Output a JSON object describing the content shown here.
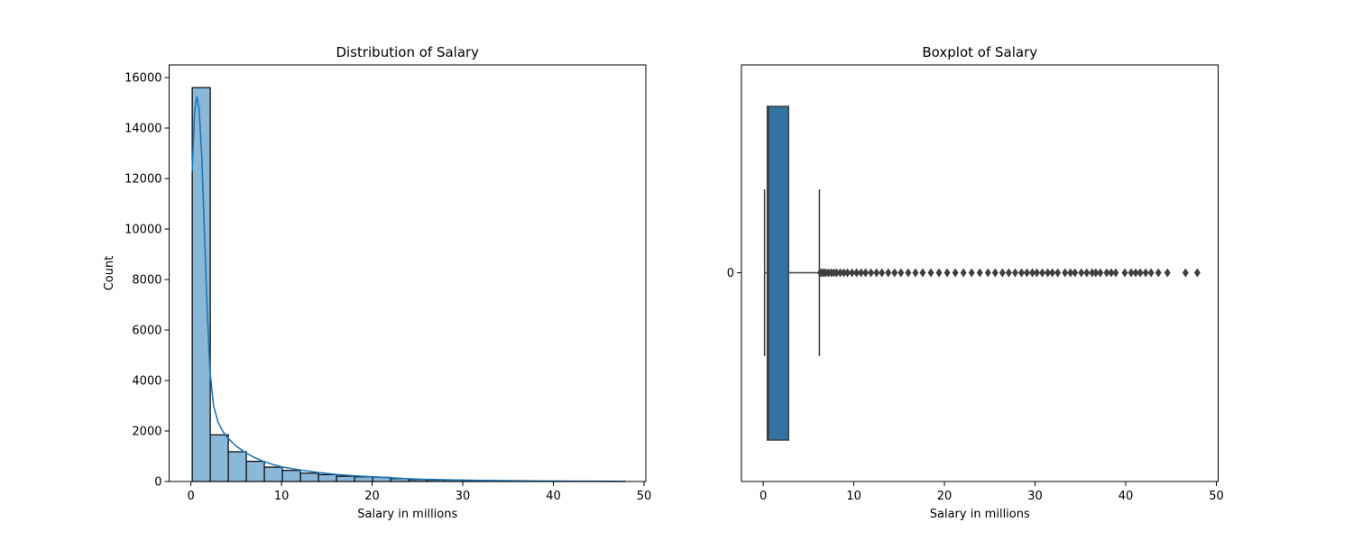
{
  "chart_data": [
    {
      "type": "bar",
      "subtype": "histogram-with-kde",
      "title": "Distribution of Salary",
      "xlabel": "Salary in millions",
      "ylabel": "Count",
      "xlim": [
        -2.4,
        50.2
      ],
      "ylim": [
        0,
        16500
      ],
      "xticks": [
        0,
        10,
        20,
        30,
        40,
        50
      ],
      "yticks": [
        0,
        2000,
        4000,
        6000,
        8000,
        10000,
        12000,
        14000,
        16000
      ],
      "bin_edges": [
        0.15,
        2.14,
        4.13,
        6.12,
        8.11,
        10.1,
        12.09,
        14.08,
        16.07,
        18.06,
        20.05,
        22.04,
        24.03,
        26.02,
        28.01,
        30.0,
        31.99,
        33.98,
        35.97,
        37.96,
        39.95,
        41.94,
        43.93,
        45.92,
        47.91
      ],
      "values": [
        15600,
        1850,
        1180,
        800,
        570,
        440,
        330,
        270,
        210,
        185,
        165,
        115,
        75,
        60,
        55,
        40,
        28,
        22,
        16,
        12,
        8,
        6,
        4,
        3
      ],
      "kde": {
        "x": [
          0.15,
          0.4,
          0.65,
          0.9,
          1.2,
          1.5,
          1.8,
          2.1,
          2.5,
          3,
          3.5,
          4,
          5,
          6,
          7,
          8,
          9,
          10,
          12,
          14,
          16,
          18,
          20,
          22,
          24,
          26,
          28,
          30,
          32,
          35,
          38,
          41,
          44,
          47.9
        ],
        "y": [
          12300,
          14600,
          15250,
          14800,
          12900,
          9800,
          6800,
          4400,
          3000,
          2350,
          2000,
          1750,
          1400,
          1150,
          950,
          800,
          680,
          580,
          460,
          360,
          280,
          225,
          185,
          150,
          110,
          85,
          70,
          55,
          45,
          32,
          22,
          15,
          10,
          5
        ]
      },
      "colors": {
        "bar_fill": "#89b8d9",
        "bar_edge": "#000000",
        "kde_line": "#1f77b4"
      },
      "grid": false,
      "legend": "none"
    },
    {
      "type": "boxplot",
      "orientation": "horizontal",
      "title": "Boxplot of Salary",
      "xlabel": "Salary in millions",
      "ylabel": "",
      "xlim": [
        -2.4,
        50.2
      ],
      "xticks": [
        0,
        10,
        20,
        30,
        40,
        50
      ],
      "categories": [
        "0"
      ],
      "box": {
        "whisker_low": 0.15,
        "q1": 0.45,
        "median": 0.6,
        "q3": 2.8,
        "whisker_high": 6.2
      },
      "outliers": [
        6.3,
        6.5,
        6.7,
        6.9,
        7.2,
        7.5,
        7.8,
        8.1,
        8.5,
        8.9,
        9.3,
        9.8,
        10.3,
        10.8,
        11.3,
        11.9,
        12.5,
        13.1,
        13.8,
        14.5,
        15.2,
        16.0,
        16.8,
        17.6,
        18.5,
        19.4,
        20.3,
        21.2,
        22.1,
        23.0,
        23.9,
        24.8,
        25.6,
        26.4,
        27.1,
        27.8,
        28.5,
        29.1,
        29.7,
        30.2,
        30.8,
        31.4,
        31.9,
        32.5,
        33.3,
        33.9,
        34.4,
        35.1,
        35.7,
        36.3,
        36.7,
        37.2,
        37.9,
        38.4,
        38.9,
        39.9,
        40.6,
        41.1,
        41.6,
        42.2,
        42.8,
        43.6,
        44.6,
        46.6,
        47.9
      ],
      "colors": {
        "box_fill": "#3274a1",
        "edges": "#3f3f3f",
        "outlier": "#3f3f3f"
      },
      "grid": false,
      "legend": "none"
    }
  ]
}
